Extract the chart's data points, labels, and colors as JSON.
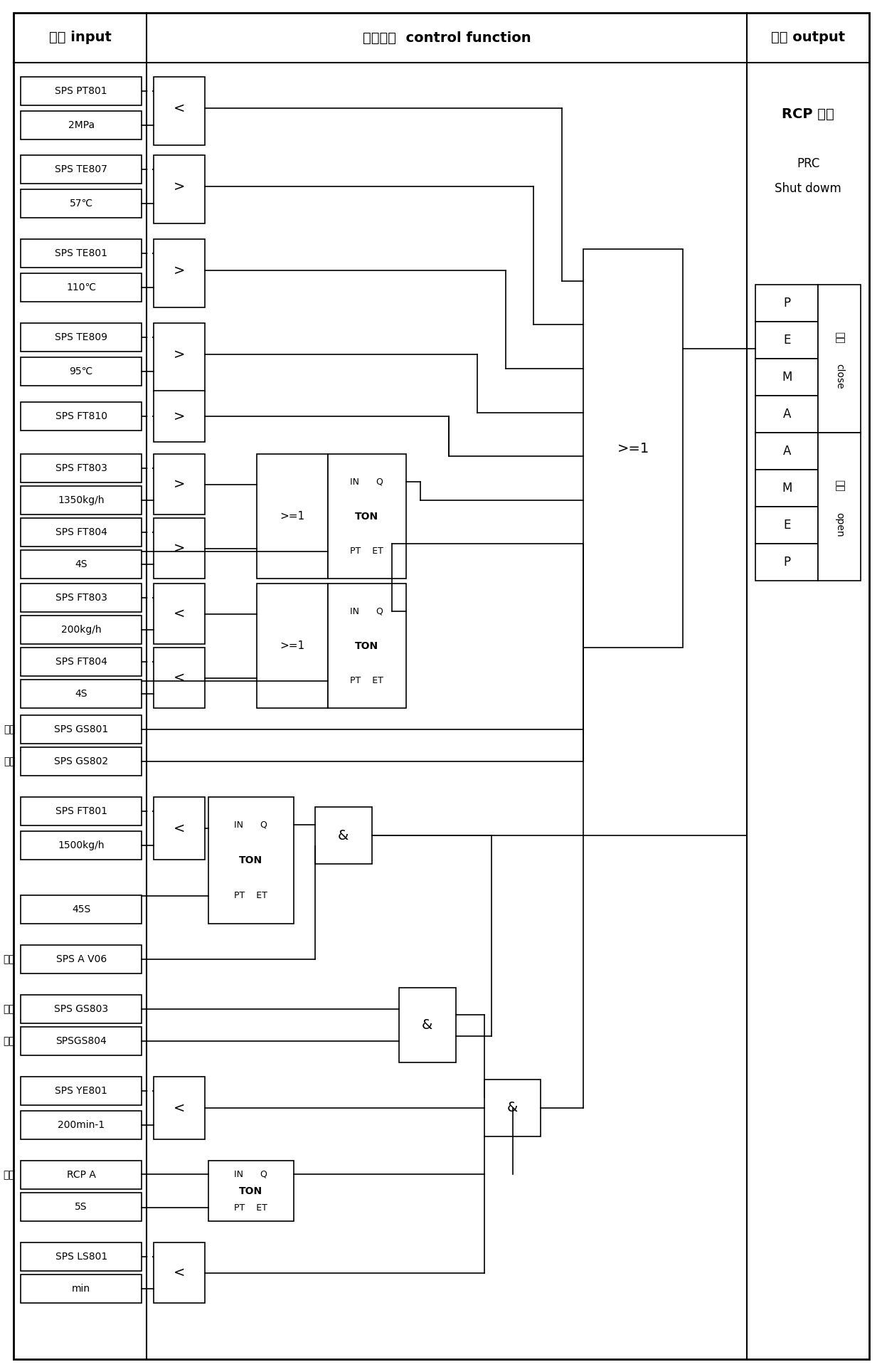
{
  "title_col1": "输入 input",
  "title_col2": "控制功能  control function",
  "title_col3": "输出 output",
  "output_top": "RCP 停机",
  "output_mid1": "PRC",
  "output_mid2": "Shut dowm",
  "close_label1": "关阀",
  "close_label2": "close",
  "open_label1": "开启",
  "open_label2": "open",
  "close_rows": [
    "P",
    "E",
    "M",
    "A"
  ],
  "open_rows": [
    "A",
    "M",
    "E",
    "P"
  ],
  "background": "#ffffff",
  "lc": "#000000"
}
